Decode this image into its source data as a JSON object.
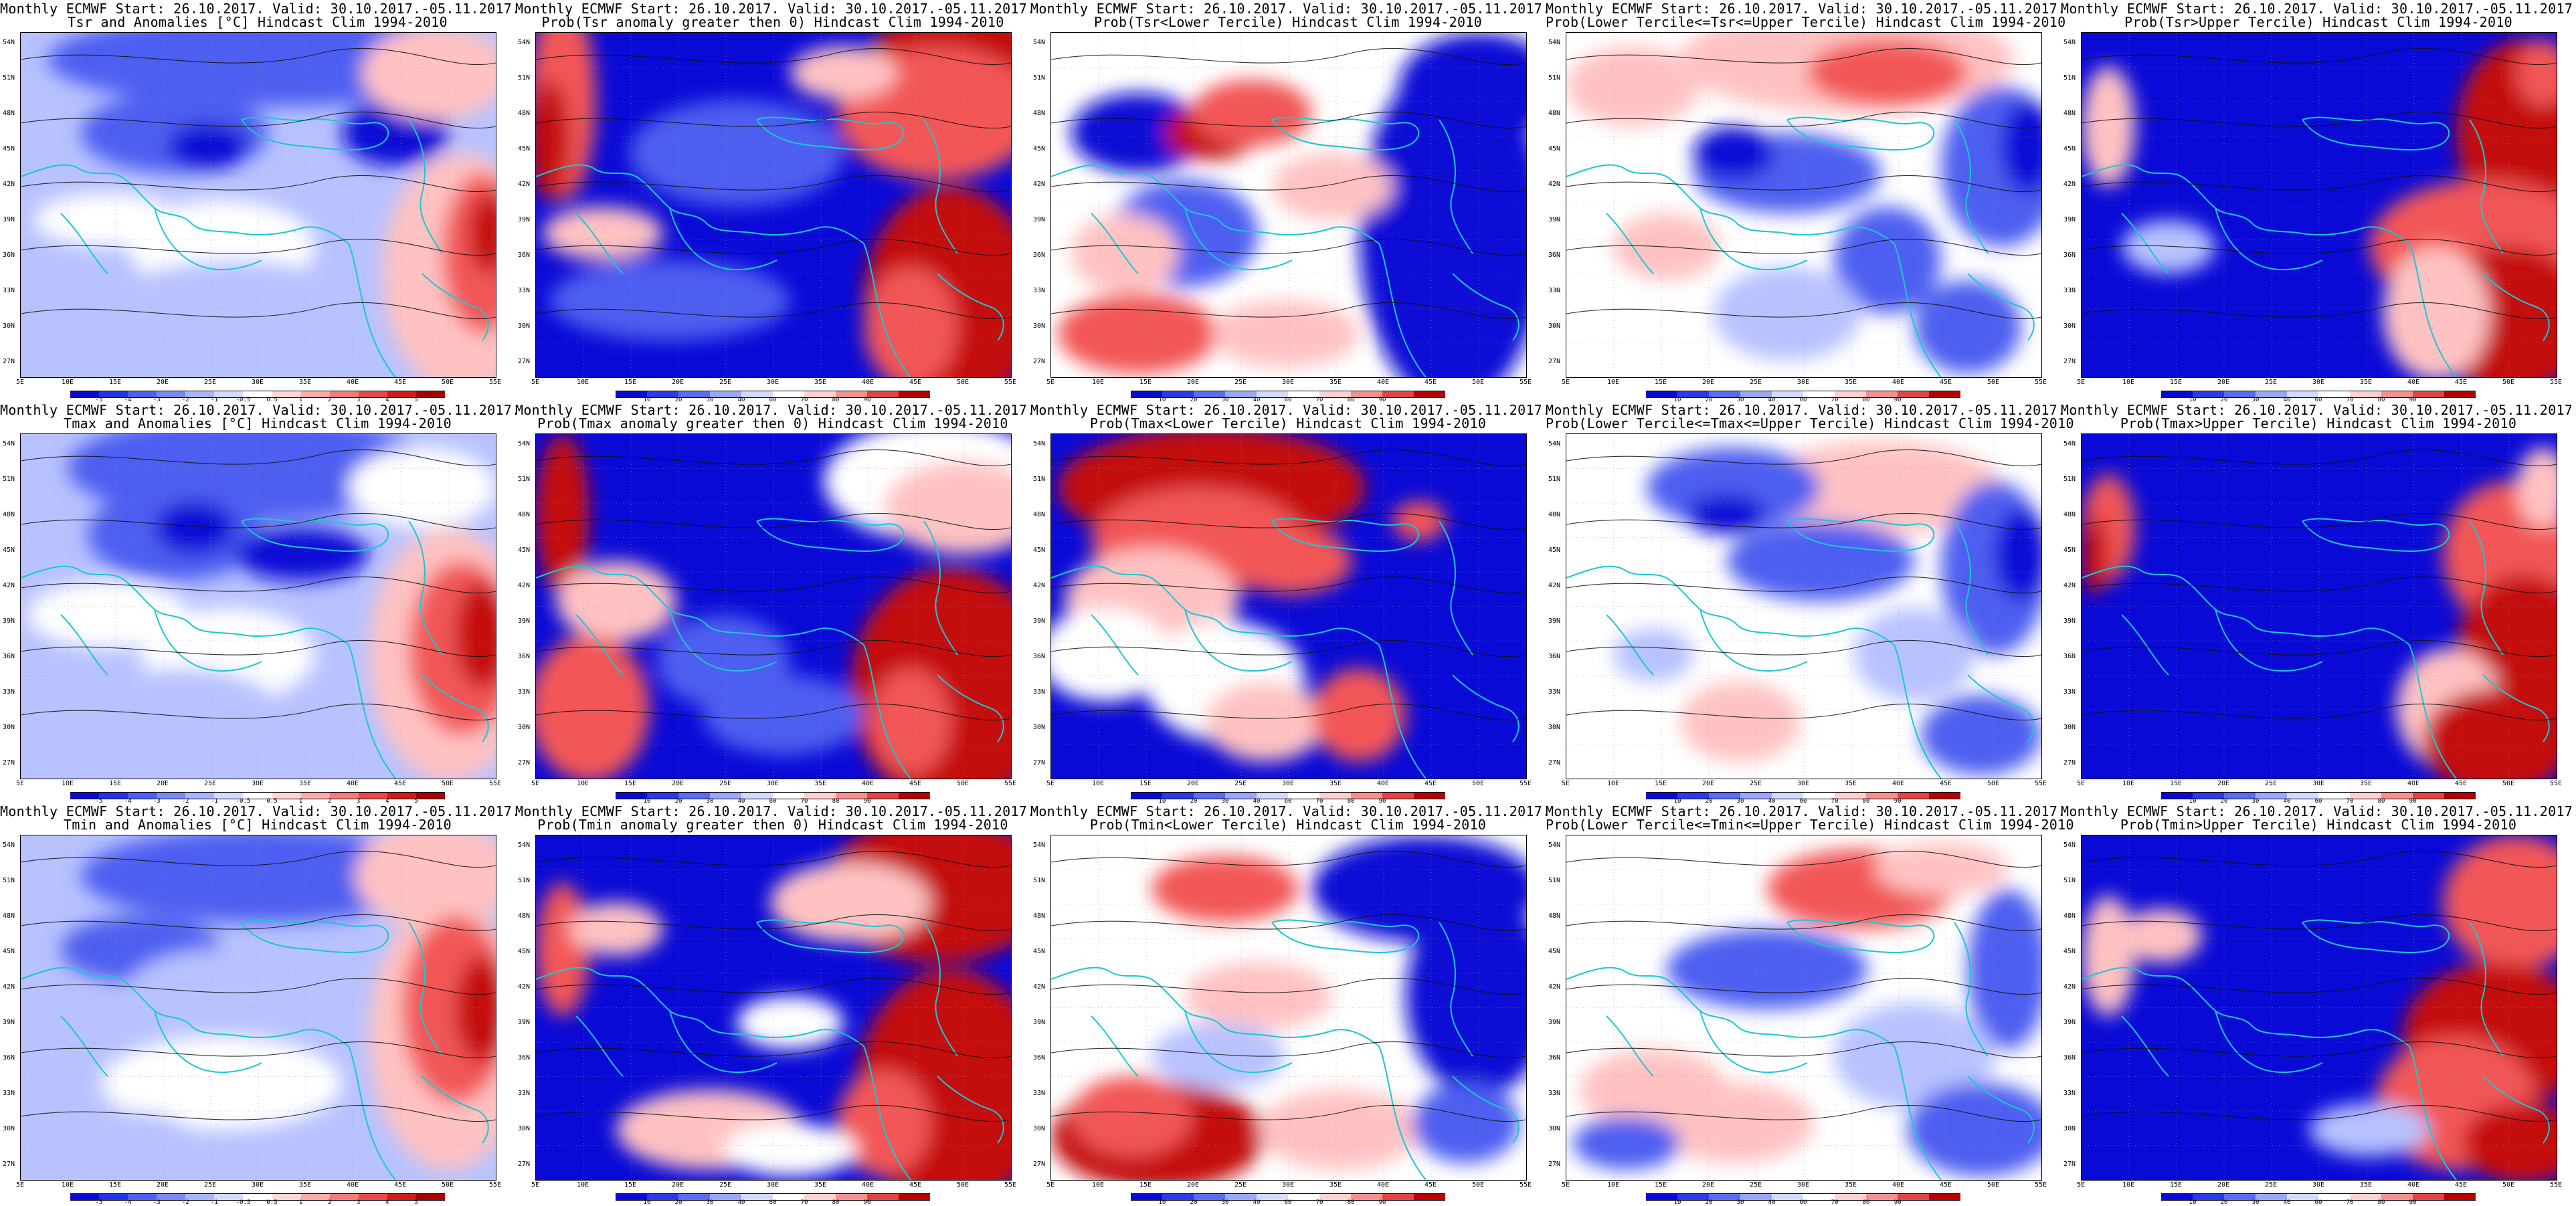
{
  "header_line": "Monthly ECMWF Start: 26.10.2017. Valid: 30.10.2017.-05.11.2017.",
  "lat_labels": [
    "54N",
    "51N",
    "48N",
    "45N",
    "42N",
    "39N",
    "36N",
    "33N",
    "30N",
    "27N"
  ],
  "lon_labels": [
    "5E",
    "10E",
    "15E",
    "20E",
    "25E",
    "30E",
    "35E",
    "40E",
    "45E",
    "50E",
    "55E"
  ],
  "anomaly_scale": [
    "-5",
    "-4",
    "-3",
    "-2",
    "-1",
    "-0.5",
    "0.5",
    "1",
    "2",
    "3",
    "4",
    "5"
  ],
  "prob_scale": [
    "10",
    "20",
    "30",
    "40",
    "60",
    "70",
    "80",
    "90"
  ],
  "colors": {
    "cold_strong": "#0a0ad6",
    "cold_mid": "#4d5ef0",
    "cold_light": "#b8c2ff",
    "neutral": "#ffffff",
    "warm_light": "#ffc2c2",
    "warm_mid": "#f25656",
    "warm_strong": "#c40a0a",
    "coast": "#19c8d2"
  },
  "rows": [
    {
      "var": "Tsr",
      "panels": [
        {
          "kind": "anom",
          "title": "Tsr and Anomalies [°C] Hindcast Clim 1994-2010",
          "pattern": "anom_a"
        },
        {
          "kind": "prob",
          "title": "Prob(Tsr anomaly greater then 0) Hindcast Clim 1994-2010",
          "pattern": "pos_a"
        },
        {
          "kind": "prob",
          "title": "Prob(Tsr<Lower Tercile) Hindcast Clim 1994-2010",
          "pattern": "low_a"
        },
        {
          "kind": "prob",
          "title": "Prob(Lower Tercile<=Tsr<=Upper Tercile) Hindcast Clim 1994-2010",
          "pattern": "mid_a"
        },
        {
          "kind": "prob",
          "title": "Prob(Tsr>Upper Tercile) Hindcast Clim 1994-2010",
          "pattern": "up_a"
        }
      ]
    },
    {
      "var": "Tmax",
      "panels": [
        {
          "kind": "anom",
          "title": "Tmax and Anomalies [°C] Hindcast Clim 1994-2010",
          "pattern": "anom_b"
        },
        {
          "kind": "prob",
          "title": "Prob(Tmax anomaly greater then 0) Hindcast Clim 1994-2010",
          "pattern": "pos_b"
        },
        {
          "kind": "prob",
          "title": "Prob(Tmax<Lower Tercile) Hindcast Clim 1994-2010",
          "pattern": "low_b"
        },
        {
          "kind": "prob",
          "title": "Prob(Lower Tercile<=Tmax<=Upper Tercile) Hindcast Clim 1994-2010",
          "pattern": "mid_b"
        },
        {
          "kind": "prob",
          "title": "Prob(Tmax>Upper Tercile) Hindcast Clim 1994-2010",
          "pattern": "up_b"
        }
      ]
    },
    {
      "var": "Tmin",
      "panels": [
        {
          "kind": "anom",
          "title": "Tmin and Anomalies [°C] Hindcast Clim 1994-2010",
          "pattern": "anom_c"
        },
        {
          "kind": "prob",
          "title": "Prob(Tmin anomaly greater then 0) Hindcast Clim 1994-2010",
          "pattern": "pos_c"
        },
        {
          "kind": "prob",
          "title": "Prob(Tmin<Lower Tercile) Hindcast Clim 1994-2010",
          "pattern": "low_c"
        },
        {
          "kind": "prob",
          "title": "Prob(Lower Tercile<=Tmin<=Upper Tercile) Hindcast Clim 1994-2010",
          "pattern": "mid_c"
        },
        {
          "kind": "prob",
          "title": "Prob(Tmin>Upper Tercile) Hindcast Clim 1994-2010",
          "pattern": "up_c"
        }
      ]
    }
  ]
}
